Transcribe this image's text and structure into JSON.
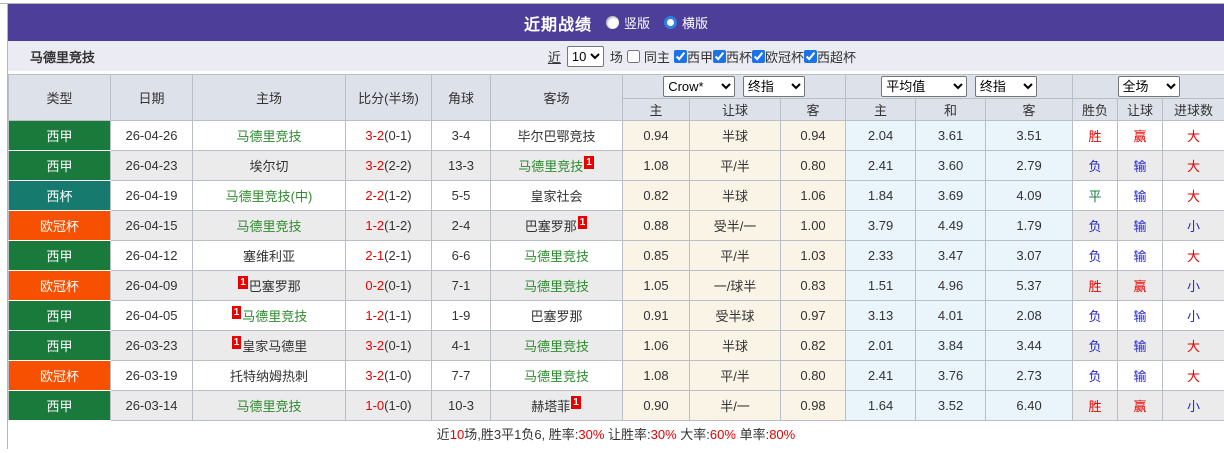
{
  "title_bar": {
    "title": "近期战绩",
    "radio_vertical": "竖版",
    "radio_horizontal": "横版",
    "selected": "横版"
  },
  "subheader": {
    "team": "马德里竞技",
    "near_label": "近",
    "matches_value": "10",
    "matches_label": "场",
    "same_home_label": "同主",
    "league_filters": [
      "西甲",
      "西杯",
      "欧冠杯",
      "西超杯"
    ]
  },
  "table": {
    "columns": [
      "类型",
      "日期",
      "主场",
      "比分(半场)",
      "角球",
      "客场"
    ],
    "sub_columns": [
      "主",
      "让球",
      "客",
      "主",
      "和",
      "客",
      "胜负",
      "让球",
      "进球数"
    ],
    "selects": {
      "provider": "Crow*",
      "ah_final": "终指",
      "eu_avg": "平均值",
      "eu_final": "终指",
      "scope": "全场"
    },
    "rows": [
      {
        "type": "西甲",
        "date": "26-04-26",
        "home": {
          "name": "马德里竞技",
          "green": true,
          "sup": "",
          "sup_pos": ""
        },
        "score": "3-2",
        "half": "(0-1)",
        "corner": "3-4",
        "away": {
          "name": "毕尔巴鄂竞技",
          "green": false,
          "sup": "",
          "sup_pos": ""
        },
        "ah": [
          "0.94",
          "半球",
          "0.94"
        ],
        "eu": [
          "2.04",
          "3.61",
          "3.51"
        ],
        "res": [
          "胜",
          "赢",
          "大"
        ]
      },
      {
        "type": "西甲",
        "date": "26-04-23",
        "home": {
          "name": "埃尔切",
          "green": false,
          "sup": "",
          "sup_pos": ""
        },
        "score": "3-2",
        "half": "(2-2)",
        "corner": "13-3",
        "away": {
          "name": "马德里竞技",
          "green": true,
          "sup": "1",
          "sup_pos": "post"
        },
        "ah": [
          "1.08",
          "平/半",
          "0.80"
        ],
        "eu": [
          "2.41",
          "3.60",
          "2.79"
        ],
        "res": [
          "负",
          "输",
          "大"
        ]
      },
      {
        "type": "西杯",
        "date": "26-04-19",
        "home": {
          "name": "马德里竞技(中)",
          "green": true,
          "sup": "",
          "sup_pos": ""
        },
        "score": "2-2",
        "half": "(1-2)",
        "corner": "5-5",
        "away": {
          "name": "皇家社会",
          "green": false,
          "sup": "",
          "sup_pos": ""
        },
        "ah": [
          "0.82",
          "半球",
          "1.06"
        ],
        "eu": [
          "1.84",
          "3.69",
          "4.09"
        ],
        "res": [
          "平",
          "输",
          "大"
        ]
      },
      {
        "type": "欧冠杯",
        "date": "26-04-15",
        "home": {
          "name": "马德里竞技",
          "green": true,
          "sup": "",
          "sup_pos": ""
        },
        "score": "1-2",
        "half": "(1-2)",
        "corner": "2-4",
        "away": {
          "name": "巴塞罗那",
          "green": false,
          "sup": "1",
          "sup_pos": "post"
        },
        "ah": [
          "0.88",
          "受半/一",
          "1.00"
        ],
        "eu": [
          "3.79",
          "4.49",
          "1.79"
        ],
        "res": [
          "负",
          "输",
          "小"
        ]
      },
      {
        "type": "西甲",
        "date": "26-04-12",
        "home": {
          "name": "塞维利亚",
          "green": false,
          "sup": "",
          "sup_pos": ""
        },
        "score": "2-1",
        "half": "(2-1)",
        "corner": "6-6",
        "away": {
          "name": "马德里竞技",
          "green": true,
          "sup": "",
          "sup_pos": ""
        },
        "ah": [
          "0.85",
          "平/半",
          "1.03"
        ],
        "eu": [
          "2.33",
          "3.47",
          "3.07"
        ],
        "res": [
          "负",
          "输",
          "大"
        ]
      },
      {
        "type": "欧冠杯",
        "date": "26-04-09",
        "home": {
          "name": "巴塞罗那",
          "green": false,
          "sup": "1",
          "sup_pos": "pre"
        },
        "score": "0-2",
        "half": "(0-1)",
        "corner": "7-1",
        "away": {
          "name": "马德里竞技",
          "green": true,
          "sup": "",
          "sup_pos": ""
        },
        "ah": [
          "1.05",
          "一/球半",
          "0.83"
        ],
        "eu": [
          "1.51",
          "4.96",
          "5.37"
        ],
        "res": [
          "胜",
          "赢",
          "小"
        ]
      },
      {
        "type": "西甲",
        "date": "26-04-05",
        "home": {
          "name": "马德里竞技",
          "green": true,
          "sup": "1",
          "sup_pos": "pre"
        },
        "score": "1-2",
        "half": "(1-1)",
        "corner": "1-9",
        "away": {
          "name": "巴塞罗那",
          "green": false,
          "sup": "",
          "sup_pos": ""
        },
        "ah": [
          "0.91",
          "受半球",
          "0.97"
        ],
        "eu": [
          "3.13",
          "4.01",
          "2.08"
        ],
        "res": [
          "负",
          "输",
          "小"
        ]
      },
      {
        "type": "西甲",
        "date": "26-03-23",
        "home": {
          "name": "皇家马德里",
          "green": false,
          "sup": "1",
          "sup_pos": "pre"
        },
        "score": "3-2",
        "half": "(0-1)",
        "corner": "4-1",
        "away": {
          "name": "马德里竞技",
          "green": true,
          "sup": "",
          "sup_pos": ""
        },
        "ah": [
          "1.06",
          "半球",
          "0.82"
        ],
        "eu": [
          "2.01",
          "3.84",
          "3.44"
        ],
        "res": [
          "负",
          "输",
          "大"
        ]
      },
      {
        "type": "欧冠杯",
        "date": "26-03-19",
        "home": {
          "name": "托特纳姆热刺",
          "green": false,
          "sup": "",
          "sup_pos": ""
        },
        "score": "3-2",
        "half": "(1-0)",
        "corner": "7-7",
        "away": {
          "name": "马德里竞技",
          "green": true,
          "sup": "",
          "sup_pos": ""
        },
        "ah": [
          "1.08",
          "平/半",
          "0.80"
        ],
        "eu": [
          "2.41",
          "3.76",
          "2.73"
        ],
        "res": [
          "负",
          "输",
          "大"
        ]
      },
      {
        "type": "西甲",
        "date": "26-03-14",
        "home": {
          "name": "马德里竞技",
          "green": true,
          "sup": "",
          "sup_pos": ""
        },
        "score": "1-0",
        "half": "(1-0)",
        "corner": "10-3",
        "away": {
          "name": "赫塔菲",
          "green": false,
          "sup": "1",
          "sup_pos": "post"
        },
        "ah": [
          "0.90",
          "半/一",
          "0.98"
        ],
        "eu": [
          "1.64",
          "3.52",
          "6.40"
        ],
        "res": [
          "胜",
          "赢",
          "小"
        ]
      }
    ]
  },
  "footer": {
    "segments": [
      {
        "t": "近"
      },
      {
        "t": "10",
        "red": true
      },
      {
        "t": "场,胜3平1负6, 胜率:"
      },
      {
        "t": "30%",
        "red": true
      },
      {
        "t": " 让胜率:"
      },
      {
        "t": "30%",
        "red": true
      },
      {
        "t": " 大率:"
      },
      {
        "t": "60%",
        "red": true
      },
      {
        "t": " 单率:"
      },
      {
        "t": "80%",
        "red": true
      }
    ]
  },
  "colors": {
    "accent_bar": "#4c3e99",
    "league": {
      "西甲": "#1a7a3c",
      "西杯": "#177a6e",
      "欧冠杯": "#f75000"
    },
    "team_green": "#2d8a2d",
    "text_dark": "#333333",
    "score_red": "#e60000",
    "ah_bg": "#faf4e6",
    "eu_bg": "#eaf4fb",
    "result": {
      "胜": "#e60000",
      "平": "#1a7a3c",
      "负": "#2727cf",
      "赢": "#e60000",
      "输": "#2727cf",
      "大": "#e60000",
      "小": "#2727cf"
    }
  }
}
